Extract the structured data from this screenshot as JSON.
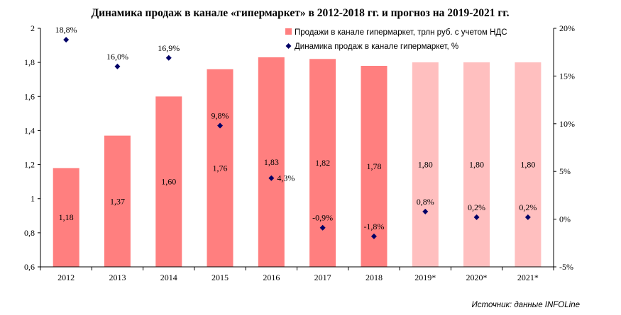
{
  "chart_data": {
    "type": "bar",
    "title": "Динамика продаж в канале «гипермаркет» в 2012-2018 гг. и прогноз на 2019-2021 гг.",
    "categories": [
      "2012",
      "2013",
      "2014",
      "2015",
      "2016",
      "2017",
      "2018",
      "2019*",
      "2020*",
      "2021*"
    ],
    "series": [
      {
        "name": "Продажи в канале гипермаркет, трлн руб. с учетом НДС",
        "type": "bar",
        "axis": "left",
        "values": [
          1.18,
          1.37,
          1.6,
          1.76,
          1.83,
          1.82,
          1.78,
          1.8,
          1.8,
          1.8
        ],
        "labels": [
          "1,18",
          "1,37",
          "1,60",
          "1,76",
          "1,83",
          "1,82",
          "1,78",
          "1,80",
          "1,80",
          "1,80"
        ],
        "color": "#ff7f7f",
        "forecast_color": "#ffbfbf",
        "forecast_from_index": 7
      },
      {
        "name": "Динамика продаж в канале гипермаркет, %",
        "type": "scatter",
        "axis": "right",
        "marker": "diamond",
        "values": [
          18.8,
          16.0,
          16.9,
          9.8,
          4.3,
          -0.9,
          -1.8,
          0.8,
          0.2,
          0.2
        ],
        "labels": [
          "18,8%",
          "16,0%",
          "16,9%",
          "9,8%",
          "4,3%",
          "-0,9%",
          "-1,8%",
          "0,8%",
          "0,2%",
          "0,2%"
        ],
        "color": "#000066"
      }
    ],
    "y_left": {
      "lim": [
        0.6,
        2.0
      ],
      "ticks": [
        0.6,
        0.8,
        1.0,
        1.2,
        1.4,
        1.6,
        1.8,
        2.0
      ],
      "tick_labels": [
        "0,6",
        "0,8",
        "1",
        "1,2",
        "1,4",
        "1,6",
        "1,8",
        "2"
      ]
    },
    "y_right": {
      "lim": [
        -5,
        20
      ],
      "ticks": [
        -5,
        0,
        5,
        10,
        15,
        20
      ],
      "tick_labels": [
        "-5%",
        "0%",
        "5%",
        "10%",
        "15%",
        "20%"
      ]
    },
    "grid": false,
    "legend_position": "top-right",
    "source": "Источник: данные INFOLine"
  }
}
